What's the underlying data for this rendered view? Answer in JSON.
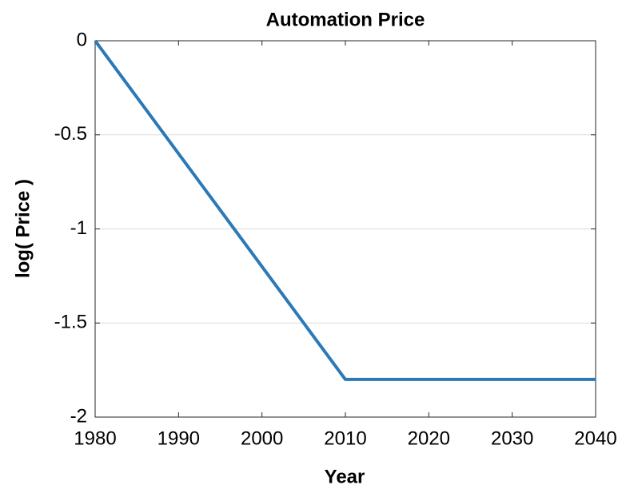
{
  "chart_data": {
    "type": "line",
    "title": "Automation Price",
    "xlabel": "Year",
    "ylabel": "log( Price )",
    "x": [
      1980,
      2010,
      2040
    ],
    "values": [
      0,
      -1.8,
      -1.8
    ],
    "color": "#2b79b6",
    "xlim": [
      1980,
      2040
    ],
    "xticks": [
      1980,
      1990,
      2000,
      2010,
      2020,
      2030,
      2040
    ],
    "ylim": [
      -2,
      0
    ],
    "yticks": [
      0,
      -0.5,
      -1,
      -1.5,
      -2
    ],
    "ygrid": true
  }
}
